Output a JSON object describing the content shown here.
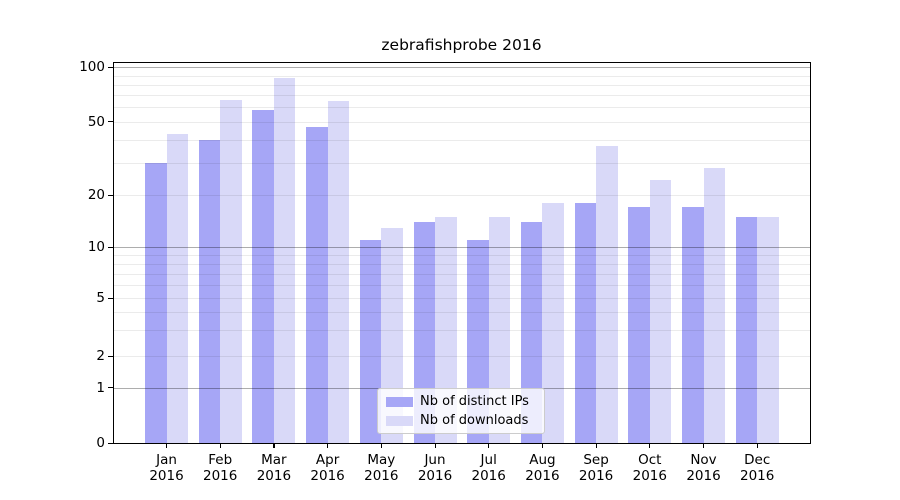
{
  "chart_data": {
    "type": "bar",
    "title": "zebrafishprobe 2016",
    "categories": [
      "Jan",
      "Feb",
      "Mar",
      "Apr",
      "May",
      "Jun",
      "Jul",
      "Aug",
      "Sep",
      "Oct",
      "Nov",
      "Dec"
    ],
    "category_year": "2016",
    "series": [
      {
        "name": "Nb of distinct IPs",
        "color": "#a6a6f6",
        "values": [
          30,
          40,
          58,
          47,
          11,
          14,
          11,
          14,
          18,
          17,
          17,
          15
        ]
      },
      {
        "name": "Nb of downloads",
        "color": "#d9d9f8",
        "values": [
          43,
          66,
          87,
          65,
          13,
          15,
          15,
          18,
          37,
          24,
          28,
          15
        ]
      }
    ],
    "xlabel": "",
    "ylabel": "",
    "yscale": "symlog",
    "ytick_labels": [
      "100",
      "50",
      "20",
      "10",
      "5",
      "2",
      "1",
      "0"
    ],
    "ytick_values": [
      100,
      50,
      20,
      10,
      5,
      2,
      1,
      0
    ],
    "minor_grid_values": [
      2,
      3,
      4,
      5,
      6,
      7,
      8,
      9,
      20,
      30,
      40,
      50,
      60,
      70,
      80,
      90
    ],
    "major_grid_values": [
      1,
      10,
      100
    ],
    "ylim": [
      0,
      110
    ],
    "grid": true,
    "legend_position": "lower center"
  },
  "legend": {
    "items": [
      {
        "label": "Nb of distinct IPs",
        "color": "#a6a6f6"
      },
      {
        "label": "Nb of downloads",
        "color": "#d9d9f8"
      }
    ]
  }
}
